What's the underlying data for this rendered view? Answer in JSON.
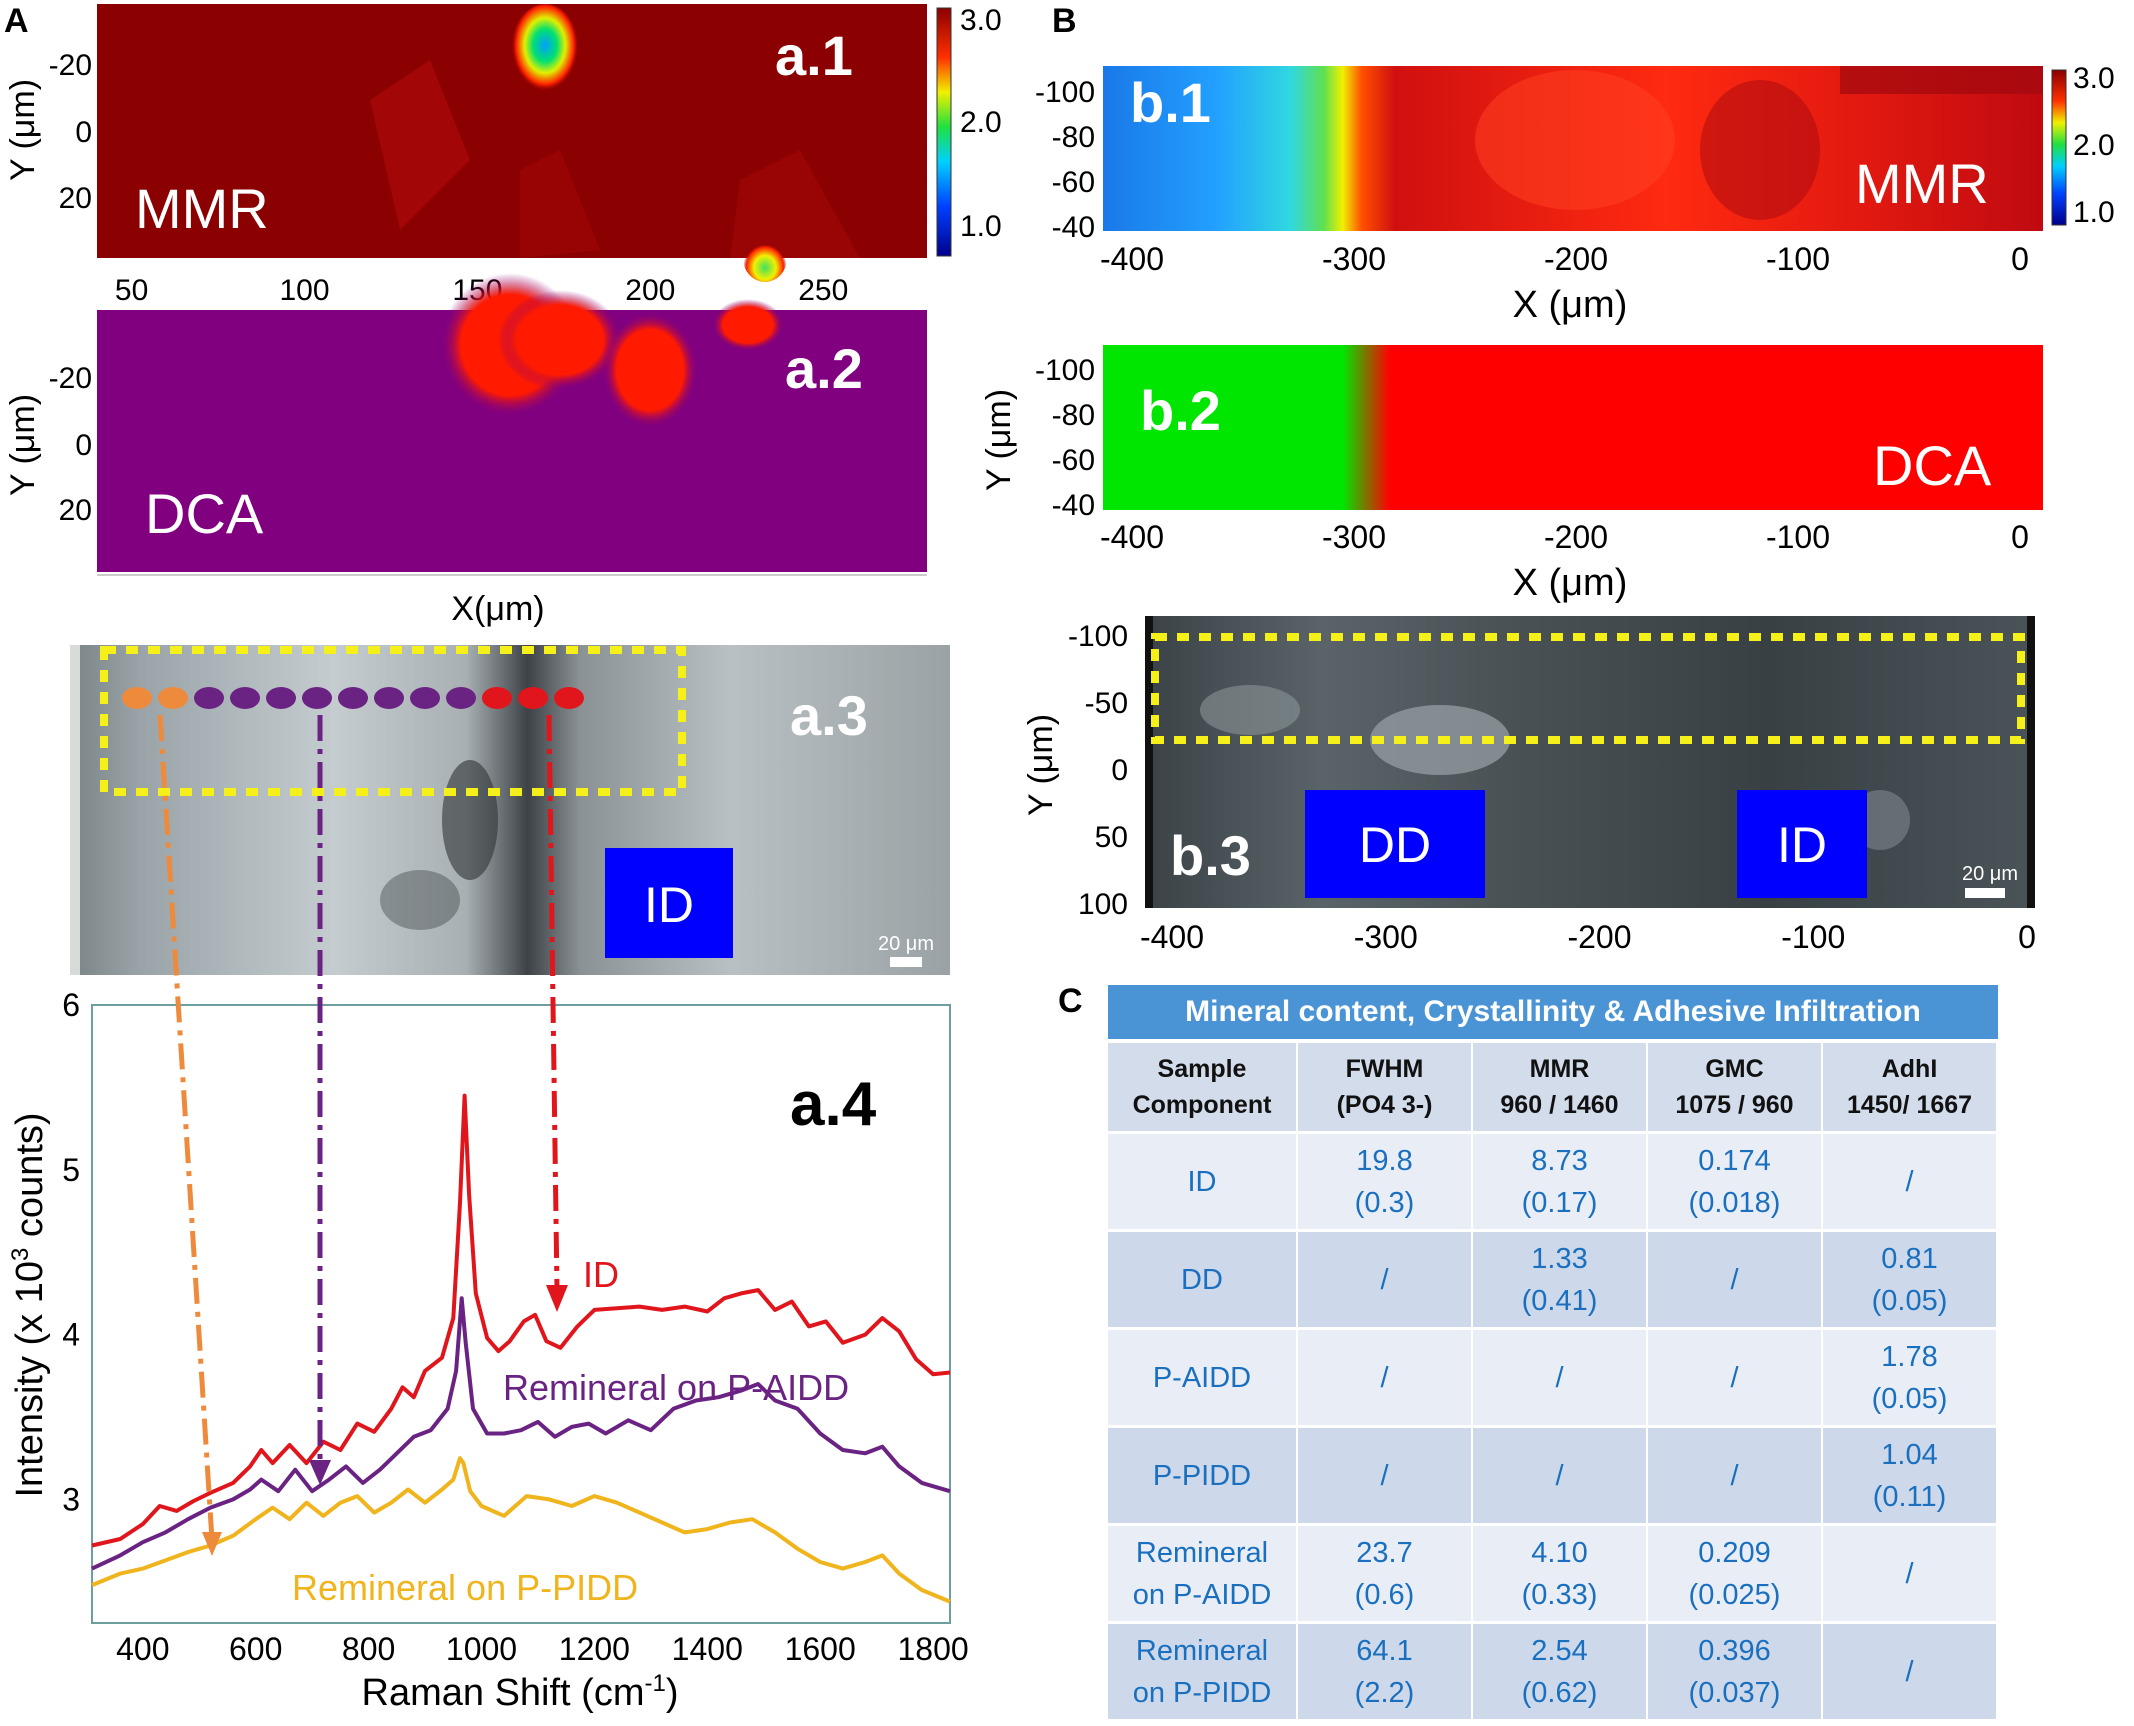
{
  "panel_letters": {
    "A": "A",
    "B": "B",
    "C": "C"
  },
  "colors": {
    "mmr_dark": "#8b0000",
    "dca_purple": "#800080",
    "dca_red": "#ff0000",
    "dca_green": "#00e600",
    "id_red": "#e0161c",
    "aidd_purple": "#6a2382",
    "pidd_yellow": "#f0b41c",
    "arrow_orange": "#ee8a3c",
    "box_yellow": "#f5ef1a",
    "label_blue": "#0000ff",
    "table_header": "#4a94d6"
  },
  "chart_data": [
    {
      "id": "a1",
      "type": "heatmap",
      "title": "a.1",
      "label": "MMR",
      "x_ticks": [
        "50",
        "100",
        "150",
        "200",
        "250"
      ],
      "xlim": [
        40,
        280
      ],
      "y_axis_label": "Y (μm)",
      "y_ticks": [
        "-20",
        "0",
        "20"
      ],
      "ylim": [
        -35,
        35
      ],
      "colorbar": {
        "ticks": [
          "3.0",
          "2.0",
          "1.0"
        ],
        "range": [
          0.8,
          3.0
        ]
      }
    },
    {
      "id": "a2",
      "type": "heatmap",
      "title": "a.2",
      "label": "DCA",
      "x_axis_label": "X(μm)",
      "y_axis_label": "Y (μm)",
      "y_ticks": [
        "-20",
        "0",
        "20"
      ]
    },
    {
      "id": "a3",
      "type": "image",
      "title": "a.3",
      "label": "ID",
      "scale_bar": "20 μm",
      "spot_groups": [
        "orange",
        "purple",
        "red"
      ],
      "spot_counts": [
        2,
        8,
        3
      ]
    },
    {
      "id": "a4",
      "type": "line",
      "title": "a.4",
      "xlabel": "Raman Shift (cm",
      "xlabel_sup": "-1",
      "xlabel_end": ")",
      "ylabel": "Intensity (x 10",
      "ylabel_sup": "3",
      "ylabel_end": " counts)",
      "xlim": [
        310,
        1830
      ],
      "ylim": [
        2.25,
        6.0
      ],
      "x_ticks": [
        "400",
        "600",
        "800",
        "1000",
        "1200",
        "1400",
        "1600",
        "1800"
      ],
      "y_ticks": [
        "3",
        "4",
        "5",
        "6"
      ],
      "series": [
        {
          "name": "ID",
          "color": "#e0161c",
          "points": [
            [
              310,
              2.72
            ],
            [
              360,
              2.76
            ],
            [
              400,
              2.85
            ],
            [
              430,
              2.96
            ],
            [
              460,
              2.93
            ],
            [
              490,
              2.99
            ],
            [
              520,
              3.04
            ],
            [
              560,
              3.1
            ],
            [
              590,
              3.2
            ],
            [
              610,
              3.3
            ],
            [
              630,
              3.22
            ],
            [
              660,
              3.33
            ],
            [
              690,
              3.22
            ],
            [
              720,
              3.35
            ],
            [
              750,
              3.3
            ],
            [
              780,
              3.46
            ],
            [
              810,
              3.41
            ],
            [
              840,
              3.55
            ],
            [
              860,
              3.68
            ],
            [
              880,
              3.62
            ],
            [
              900,
              3.78
            ],
            [
              930,
              3.86
            ],
            [
              950,
              4.1
            ],
            [
              962,
              4.8
            ],
            [
              970,
              5.45
            ],
            [
              978,
              4.85
            ],
            [
              990,
              4.25
            ],
            [
              1010,
              3.98
            ],
            [
              1030,
              3.9
            ],
            [
              1050,
              3.96
            ],
            [
              1075,
              4.08
            ],
            [
              1095,
              4.12
            ],
            [
              1115,
              3.96
            ],
            [
              1140,
              3.92
            ],
            [
              1170,
              4.05
            ],
            [
              1200,
              4.15
            ],
            [
              1240,
              4.16
            ],
            [
              1280,
              4.17
            ],
            [
              1320,
              4.15
            ],
            [
              1360,
              4.17
            ],
            [
              1400,
              4.14
            ],
            [
              1430,
              4.22
            ],
            [
              1460,
              4.25
            ],
            [
              1490,
              4.27
            ],
            [
              1520,
              4.15
            ],
            [
              1550,
              4.2
            ],
            [
              1580,
              4.05
            ],
            [
              1610,
              4.08
            ],
            [
              1640,
              3.95
            ],
            [
              1680,
              4.0
            ],
            [
              1710,
              4.1
            ],
            [
              1740,
              4.02
            ],
            [
              1770,
              3.85
            ],
            [
              1800,
              3.76
            ],
            [
              1830,
              3.77
            ]
          ]
        },
        {
          "name": "Remineral on P-AIDD",
          "color": "#6a2382",
          "points": [
            [
              310,
              2.58
            ],
            [
              360,
              2.66
            ],
            [
              400,
              2.74
            ],
            [
              440,
              2.8
            ],
            [
              480,
              2.88
            ],
            [
              520,
              2.95
            ],
            [
              560,
              3.0
            ],
            [
              590,
              3.06
            ],
            [
              610,
              3.12
            ],
            [
              640,
              3.05
            ],
            [
              670,
              3.18
            ],
            [
              700,
              3.05
            ],
            [
              730,
              3.12
            ],
            [
              760,
              3.2
            ],
            [
              790,
              3.1
            ],
            [
              820,
              3.18
            ],
            [
              850,
              3.28
            ],
            [
              880,
              3.38
            ],
            [
              910,
              3.42
            ],
            [
              940,
              3.55
            ],
            [
              955,
              3.78
            ],
            [
              965,
              4.22
            ],
            [
              972,
              3.95
            ],
            [
              985,
              3.55
            ],
            [
              1010,
              3.4
            ],
            [
              1040,
              3.4
            ],
            [
              1070,
              3.42
            ],
            [
              1100,
              3.47
            ],
            [
              1130,
              3.38
            ],
            [
              1160,
              3.44
            ],
            [
              1190,
              3.46
            ],
            [
              1220,
              3.4
            ],
            [
              1260,
              3.48
            ],
            [
              1300,
              3.42
            ],
            [
              1340,
              3.55
            ],
            [
              1380,
              3.6
            ],
            [
              1420,
              3.62
            ],
            [
              1460,
              3.66
            ],
            [
              1490,
              3.7
            ],
            [
              1520,
              3.6
            ],
            [
              1560,
              3.55
            ],
            [
              1600,
              3.4
            ],
            [
              1640,
              3.3
            ],
            [
              1680,
              3.28
            ],
            [
              1710,
              3.32
            ],
            [
              1740,
              3.2
            ],
            [
              1780,
              3.1
            ],
            [
              1830,
              3.05
            ]
          ]
        },
        {
          "name": "Remineral on P-PIDD",
          "color": "#f0b41c",
          "points": [
            [
              310,
              2.48
            ],
            [
              360,
              2.55
            ],
            [
              400,
              2.58
            ],
            [
              440,
              2.63
            ],
            [
              480,
              2.68
            ],
            [
              520,
              2.72
            ],
            [
              560,
              2.78
            ],
            [
              600,
              2.88
            ],
            [
              630,
              2.95
            ],
            [
              660,
              2.88
            ],
            [
              690,
              2.98
            ],
            [
              720,
              2.9
            ],
            [
              750,
              2.98
            ],
            [
              780,
              3.02
            ],
            [
              810,
              2.92
            ],
            [
              840,
              2.98
            ],
            [
              870,
              3.06
            ],
            [
              900,
              2.98
            ],
            [
              930,
              3.06
            ],
            [
              950,
              3.12
            ],
            [
              962,
              3.25
            ],
            [
              968,
              3.22
            ],
            [
              980,
              3.05
            ],
            [
              1000,
              2.96
            ],
            [
              1040,
              2.9
            ],
            [
              1080,
              3.02
            ],
            [
              1120,
              3.0
            ],
            [
              1160,
              2.96
            ],
            [
              1200,
              3.02
            ],
            [
              1240,
              2.98
            ],
            [
              1280,
              2.92
            ],
            [
              1320,
              2.86
            ],
            [
              1360,
              2.8
            ],
            [
              1400,
              2.82
            ],
            [
              1440,
              2.86
            ],
            [
              1480,
              2.88
            ],
            [
              1520,
              2.8
            ],
            [
              1560,
              2.7
            ],
            [
              1600,
              2.62
            ],
            [
              1640,
              2.58
            ],
            [
              1680,
              2.62
            ],
            [
              1710,
              2.66
            ],
            [
              1740,
              2.55
            ],
            [
              1780,
              2.45
            ],
            [
              1830,
              2.38
            ]
          ]
        }
      ],
      "annotations": [
        "ID",
        "Remineral on P-AIDD",
        "Remineral on P-PIDD"
      ]
    },
    {
      "id": "b1",
      "type": "heatmap",
      "title": "b.1",
      "label": "MMR",
      "x_axis_label": "X (μm)",
      "x_ticks": [
        "-400",
        "-300",
        "-200",
        "-100",
        "0"
      ],
      "xlim": [
        -410,
        5
      ],
      "y_ticks": [
        "-100",
        "-80",
        "-60",
        "-40"
      ],
      "colorbar": {
        "ticks": [
          "3.0",
          "2.0",
          "1.0"
        ]
      }
    },
    {
      "id": "b2",
      "type": "heatmap",
      "title": "b.2",
      "label": "DCA",
      "x_axis_label": "X (μm)",
      "x_ticks": [
        "-400",
        "-300",
        "-200",
        "-100",
        "0"
      ],
      "y_axis_label": "Y (μm)",
      "y_ticks": [
        "-100",
        "-80",
        "-60",
        "-40"
      ]
    },
    {
      "id": "b3",
      "type": "image",
      "title": "b.3",
      "labels": [
        "DD",
        "ID"
      ],
      "scale_bar": "20 μm",
      "x_ticks": [
        "-400",
        "-300",
        "-200",
        "-100",
        "0"
      ],
      "y_axis_label": "Y (μm)",
      "y_ticks": [
        "-100",
        "-50",
        "0",
        "50",
        "100"
      ]
    }
  ],
  "table": {
    "title": "Mineral content, Crystallinity & Adhesive Infiltration",
    "headers": [
      {
        "line1": "Sample",
        "line2": "Component"
      },
      {
        "line1": "FWHM",
        "line2": "(PO4 3-)"
      },
      {
        "line1": "MMR",
        "line2": "960 / 1460"
      },
      {
        "line1": "GMC",
        "line2": "1075 / 960"
      },
      {
        "line1": "AdhI",
        "line2": "1450/ 1667"
      }
    ],
    "rows": [
      {
        "name": [
          "ID"
        ],
        "cells": [
          [
            "19.8",
            "(0.3)"
          ],
          [
            "8.73",
            "(0.17)"
          ],
          [
            "0.174",
            "(0.018)"
          ],
          [
            "/",
            ""
          ]
        ]
      },
      {
        "name": [
          "DD"
        ],
        "cells": [
          [
            "/",
            ""
          ],
          [
            "1.33",
            "(0.41)"
          ],
          [
            "/",
            ""
          ],
          [
            "0.81",
            "(0.05)"
          ]
        ]
      },
      {
        "name": [
          "P-AIDD"
        ],
        "cells": [
          [
            "/",
            ""
          ],
          [
            "/",
            ""
          ],
          [
            "/",
            ""
          ],
          [
            "1.78",
            "(0.05)"
          ]
        ]
      },
      {
        "name": [
          "P-PIDD"
        ],
        "cells": [
          [
            "/",
            ""
          ],
          [
            "/",
            ""
          ],
          [
            "/",
            ""
          ],
          [
            "1.04",
            "(0.11)"
          ]
        ]
      },
      {
        "name": [
          "Remineral",
          "on P-AIDD"
        ],
        "cells": [
          [
            "23.7",
            "(0.6)"
          ],
          [
            "4.10",
            "(0.33)"
          ],
          [
            "0.209",
            "(0.025)"
          ],
          [
            "/",
            ""
          ]
        ]
      },
      {
        "name": [
          "Remineral",
          "on P-PIDD"
        ],
        "cells": [
          [
            "64.1",
            "(2.2)"
          ],
          [
            "2.54",
            "(0.62)"
          ],
          [
            "0.396",
            "(0.037)"
          ],
          [
            "/",
            ""
          ]
        ]
      }
    ]
  }
}
